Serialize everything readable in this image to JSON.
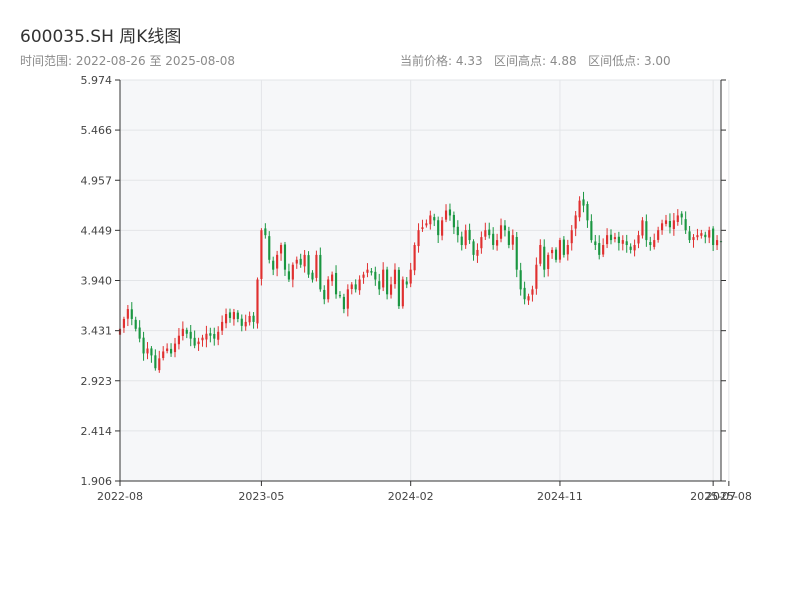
{
  "header": {
    "title": "600035.SH 周K线图",
    "range_label": "时间范围:",
    "range_start": "2022-08-26",
    "range_sep": "至",
    "range_end": "2025-08-08",
    "current_label": "当前价格:",
    "current_value": "4.33",
    "high_label": "区间高点:",
    "high_value": "4.88",
    "low_label": "区间低点:",
    "low_value": "3.00"
  },
  "chart_data": {
    "type": "candlestick",
    "title": "600035.SH 周K线图",
    "xlabel": "",
    "ylabel": "",
    "ylim": [
      1.906,
      5.974
    ],
    "y_ticks": [
      "5.974",
      "5.466",
      "4.957",
      "4.449",
      "3.940",
      "3.431",
      "2.923",
      "2.414",
      "1.906"
    ],
    "x_ticks": [
      {
        "label": "2022-08",
        "index": 0
      },
      {
        "label": "2023-05",
        "index": 36
      },
      {
        "label": "2024-02",
        "index": 74
      },
      {
        "label": "2024-11",
        "index": 112
      },
      {
        "label": "2025-07",
        "index": 151
      },
      {
        "label": "2025-08",
        "index": 155
      }
    ],
    "grid": true,
    "colors": {
      "up": "#e03030",
      "down": "#1a9641",
      "plot_bg": "#f6f7f9",
      "grid": "#e3e5e8",
      "axis": "#333333"
    },
    "close": [
      3.45,
      3.55,
      3.65,
      3.55,
      3.45,
      3.35,
      3.2,
      3.25,
      3.18,
      3.05,
      3.15,
      3.22,
      3.25,
      3.2,
      3.3,
      3.38,
      3.45,
      3.4,
      3.35,
      3.28,
      3.32,
      3.36,
      3.4,
      3.38,
      3.35,
      3.42,
      3.52,
      3.6,
      3.56,
      3.62,
      3.55,
      3.48,
      3.52,
      3.58,
      3.52,
      3.95,
      4.45,
      4.4,
      4.15,
      4.05,
      4.2,
      4.3,
      4.05,
      3.95,
      4.1,
      4.15,
      4.1,
      4.2,
      4.0,
      3.95,
      4.2,
      3.85,
      3.75,
      3.95,
      4.0,
      3.8,
      3.78,
      3.65,
      3.85,
      3.9,
      3.85,
      3.95,
      4.0,
      4.05,
      4.02,
      3.95,
      3.85,
      4.05,
      3.8,
      3.9,
      4.05,
      3.68,
      3.95,
      3.9,
      4.05,
      4.3,
      4.45,
      4.48,
      4.52,
      4.6,
      4.55,
      4.4,
      4.55,
      4.65,
      4.6,
      4.48,
      4.4,
      4.3,
      4.45,
      4.35,
      4.2,
      4.25,
      4.38,
      4.45,
      4.4,
      4.3,
      4.35,
      4.5,
      4.45,
      4.3,
      4.4,
      4.05,
      3.85,
      3.75,
      3.78,
      3.85,
      4.1,
      4.3,
      4.05,
      4.2,
      4.25,
      4.15,
      4.35,
      4.2,
      4.3,
      4.45,
      4.6,
      4.75,
      4.7,
      4.55,
      4.35,
      4.3,
      4.2,
      4.3,
      4.4,
      4.35,
      4.38,
      4.32,
      4.35,
      4.3,
      4.25,
      4.3,
      4.4,
      4.55,
      4.35,
      4.3,
      4.35,
      4.45,
      4.52,
      4.55,
      4.48,
      4.55,
      4.6,
      4.58,
      4.45,
      4.35,
      4.38,
      4.4,
      4.42,
      4.38,
      4.45,
      4.3,
      4.35,
      4.33
    ],
    "values_note": ""
  }
}
